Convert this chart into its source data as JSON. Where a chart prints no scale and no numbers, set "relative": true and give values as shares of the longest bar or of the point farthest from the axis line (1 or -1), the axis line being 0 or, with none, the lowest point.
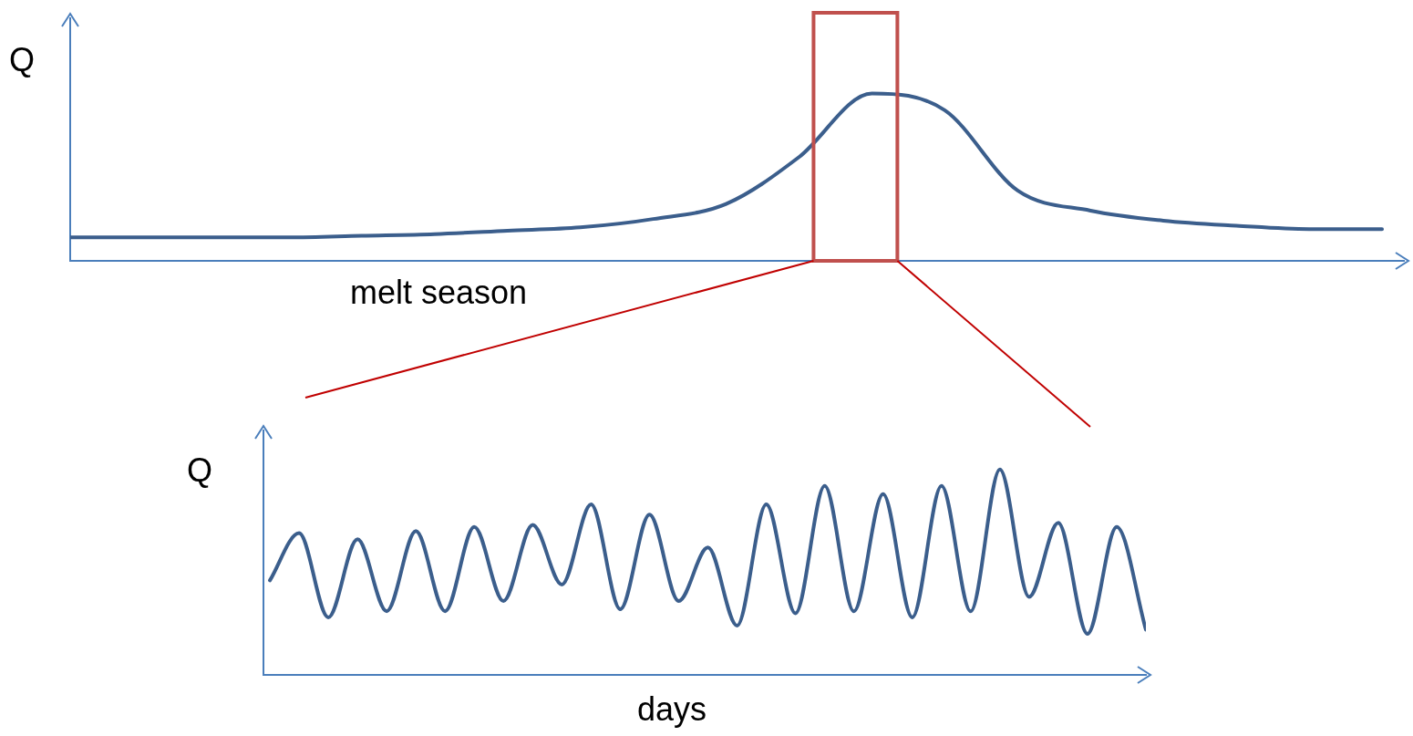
{
  "chart_data": [
    {
      "type": "line",
      "xlabel": "melt season",
      "ylabel": "Q",
      "relative": true,
      "tick_labels": false,
      "marker": "none",
      "categories": [
        null,
        null,
        null,
        null,
        null,
        null,
        null,
        null,
        null,
        null,
        null,
        null,
        null,
        null,
        null,
        null,
        null,
        null,
        null
      ],
      "series": [
        {
          "color": "#3b5e8c",
          "values": [
            0.14,
            0.14,
            0.14,
            0.14,
            0.15,
            0.16,
            0.18,
            0.2,
            0.25,
            0.34,
            0.62,
            1,
            0.9,
            0.42,
            0.3,
            0.24,
            0.21,
            0.19,
            0.19
          ]
        }
      ]
    },
    {
      "type": "line",
      "xlabel": "days",
      "ylabel": "Q",
      "relative": true,
      "tick_labels": false,
      "marker": "none",
      "categories": [
        null,
        null,
        null,
        null,
        null,
        null,
        null,
        null,
        null,
        null,
        null,
        null,
        null,
        null,
        null,
        null,
        null,
        null,
        null,
        null,
        null,
        null,
        null,
        null,
        null,
        null,
        null,
        null,
        null,
        null,
        null
      ],
      "series": [
        {
          "color": "#3b5e8c",
          "values": [
            0.46,
            0.69,
            0.28,
            0.66,
            0.31,
            0.7,
            0.31,
            0.72,
            0.36,
            0.73,
            0.44,
            0.83,
            0.32,
            0.78,
            0.36,
            0.62,
            0.24,
            0.83,
            0.3,
            0.92,
            0.31,
            0.88,
            0.28,
            0.92,
            0.31,
            1,
            0.38,
            0.74,
            0.2,
            0.72,
            0.22
          ]
        }
      ]
    }
  ]
}
